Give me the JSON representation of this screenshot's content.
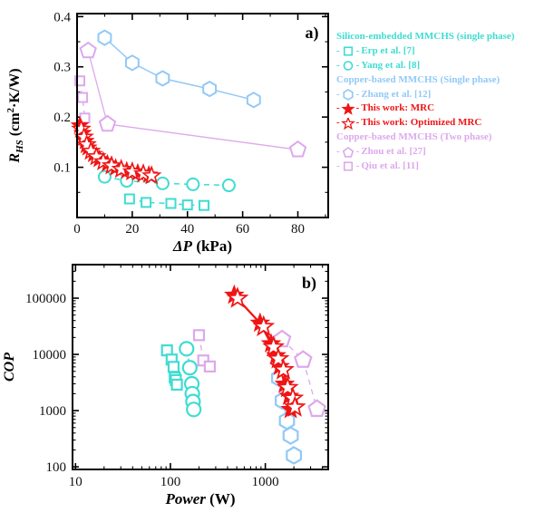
{
  "colors": {
    "cyan": "#3FDCD2",
    "lightblue": "#92C9F7",
    "red": "#F01515",
    "violet": "#DCA9EC",
    "axis": "#000000",
    "background": "#FFFFFF"
  },
  "legend": {
    "dash": "-",
    "groups": [
      {
        "header": "Silicon-embedded MMCHS (single phase)",
        "color": "cyan",
        "items": [
          {
            "label": "Erp et al. [7]",
            "marker": "square"
          },
          {
            "label": "Yang et al. [8]",
            "marker": "circle"
          }
        ]
      },
      {
        "header": "Copper-based MMCHS (Single phase)",
        "color": "lightblue",
        "items": [
          {
            "label": "Zhang et al. [12]",
            "marker": "hexagon"
          },
          {
            "label": "This work: MRC",
            "marker": "star",
            "color": "red"
          },
          {
            "label": "This work: Optimized MRC",
            "marker": "star-open",
            "color": "red"
          }
        ]
      },
      {
        "header": "Copper-based MMCHS (Two phase)",
        "color": "violet",
        "items": [
          {
            "label": "Zhou et al. [27]",
            "marker": "pentagon"
          },
          {
            "label": "Qiu et al. [11]",
            "marker": "square"
          }
        ]
      }
    ]
  },
  "chart_data": [
    {
      "panel": "a",
      "type": "scatter",
      "panel_label": "a)",
      "xlog": false,
      "ylog": false,
      "xlim": [
        0,
        91
      ],
      "ylim": [
        0,
        0.406
      ],
      "xticks": [
        0,
        20,
        40,
        60,
        80
      ],
      "xminor": [
        10,
        30,
        50,
        70,
        90
      ],
      "yticks": [
        0.1,
        0.2,
        0.3,
        0.4
      ],
      "yminor": [
        0.05,
        0.15,
        0.25,
        0.35
      ],
      "xlabel": {
        "sym": "ΔP",
        "unit": " (kPa)"
      },
      "ylabel": {
        "sym": "R",
        "sub": "HS",
        "pre": " (cm",
        "sup": "2",
        "post": "·K/W)"
      },
      "series": [
        {
          "key": "qiu",
          "name": "Qiu et al. [11]",
          "color": "violet",
          "marker": "square",
          "msize": 10,
          "line": "dashed",
          "lw": 1.3,
          "points": [
            [
              1,
              0.272
            ],
            [
              2,
              0.239
            ],
            [
              2.8,
              0.198
            ]
          ]
        },
        {
          "key": "zhou",
          "name": "Zhou et al. [27]",
          "color": "violet",
          "marker": "pentagon",
          "msize": 9,
          "line": "solid",
          "lw": 1.3,
          "points": [
            [
              4,
              0.332
            ],
            [
              11,
              0.186
            ],
            [
              80,
              0.135
            ]
          ]
        },
        {
          "key": "zhang",
          "name": "Zhang et al. [12]",
          "color": "lightblue",
          "marker": "hexagon",
          "msize": 8,
          "line": "solid",
          "lw": 1.5,
          "points": [
            [
              10,
              0.358
            ],
            [
              20,
              0.308
            ],
            [
              31,
              0.277
            ],
            [
              48,
              0.256
            ],
            [
              64,
              0.234
            ]
          ]
        },
        {
          "key": "erp",
          "name": "Erp et al. [7]",
          "color": "cyan",
          "marker": "square",
          "msize": 10,
          "line": "dashed",
          "lw": 1.5,
          "points": [
            [
              19,
              0.037
            ],
            [
              25,
              0.03
            ],
            [
              34,
              0.028
            ],
            [
              40,
              0.025
            ],
            [
              46,
              0.024
            ]
          ]
        },
        {
          "key": "yang",
          "name": "Yang et al. [8]",
          "color": "cyan",
          "marker": "circle",
          "msize": 6.5,
          "line": "dashed",
          "lw": 1.5,
          "points": [
            [
              10,
              0.081
            ],
            [
              18,
              0.073
            ],
            [
              31,
              0.068
            ],
            [
              42,
              0.066
            ],
            [
              55,
              0.064
            ]
          ]
        },
        {
          "key": "mrc",
          "name": "This work: MRC",
          "color": "red",
          "marker": "star",
          "msize": 9.5,
          "line": "solid",
          "lw": 1.6,
          "points": [
            [
              1,
              0.183
            ],
            [
              2,
              0.168
            ],
            [
              3,
              0.152
            ],
            [
              4,
              0.139
            ],
            [
              6,
              0.126
            ],
            [
              8,
              0.116
            ],
            [
              11,
              0.107
            ],
            [
              14,
              0.099
            ],
            [
              18,
              0.093
            ],
            [
              22,
              0.089
            ],
            [
              26,
              0.085
            ]
          ]
        },
        {
          "key": "mrc-opt",
          "name": "This work: Optimized MRC",
          "color": "red",
          "marker": "star-open",
          "msize": 9.5,
          "line": "solid",
          "lw": 1.3,
          "points": [
            [
              1.5,
              0.176
            ],
            [
              2.5,
              0.16
            ],
            [
              3.5,
              0.145
            ],
            [
              5,
              0.132
            ],
            [
              7,
              0.121
            ],
            [
              9.5,
              0.111
            ],
            [
              12.5,
              0.103
            ],
            [
              16,
              0.096
            ],
            [
              20,
              0.091
            ],
            [
              24,
              0.087
            ],
            [
              27,
              0.083
            ]
          ]
        }
      ]
    },
    {
      "panel": "b",
      "type": "scatter",
      "panel_label": "b)",
      "xlog": true,
      "ylog": true,
      "xlim": [
        9.3,
        4600
      ],
      "ylim": [
        90,
        395000
      ],
      "xticks": [
        10,
        100,
        1000
      ],
      "yticks": [
        100,
        1000,
        10000,
        100000
      ],
      "xlabel": {
        "sym": "Power",
        "unit": " (W)"
      },
      "ylabel": {
        "sym": "COP"
      },
      "series": [
        {
          "key": "qiu",
          "name": "Qiu et al. [11]",
          "color": "violet",
          "marker": "square",
          "msize": 11,
          "line": "dashed",
          "lw": 1.3,
          "points": [
            [
              200,
              22000
            ],
            [
              222,
              7800
            ],
            [
              260,
              6100
            ]
          ]
        },
        {
          "key": "zhou",
          "name": "Zhou et al. [27]",
          "color": "violet",
          "marker": "pentagon",
          "msize": 9.5,
          "line": "dashed",
          "lw": 1.3,
          "points": [
            [
              1500,
              18500
            ],
            [
              2500,
              8000
            ],
            [
              3500,
              1070
            ]
          ]
        },
        {
          "key": "zhang",
          "name": "Zhang et al. [12]",
          "color": "lightblue",
          "marker": "hexagon",
          "msize": 9,
          "line": "dashed",
          "lw": 1.4,
          "points": [
            [
              1400,
              3800
            ],
            [
              1530,
              1500
            ],
            [
              1690,
              660
            ],
            [
              1850,
              360
            ],
            [
              2000,
              160
            ]
          ]
        },
        {
          "key": "erp",
          "name": "Erp et al. [7]",
          "color": "cyan",
          "marker": "square",
          "msize": 11,
          "line": "dashed",
          "lw": 1.4,
          "points": [
            [
              92,
              11800
            ],
            [
              103,
              8100
            ],
            [
              108,
              6000
            ],
            [
              111,
              3900
            ],
            [
              114,
              3500
            ],
            [
              117,
              2900
            ]
          ]
        },
        {
          "key": "yang",
          "name": "Yang et al. [8]",
          "color": "cyan",
          "marker": "circle",
          "msize": 7.5,
          "line": "dashed",
          "lw": 1.4,
          "points": [
            [
              148,
              12600
            ],
            [
              160,
              5800
            ],
            [
              168,
              3000
            ],
            [
              170,
              2000
            ],
            [
              173,
              1450
            ],
            [
              176,
              1050
            ]
          ]
        },
        {
          "key": "mrc",
          "name": "This work: MRC",
          "color": "red",
          "marker": "star",
          "msize": 10.5,
          "line": "solid",
          "lw": 2.2,
          "points": [
            [
              470,
              113000
            ],
            [
              880,
              36000
            ],
            [
              1150,
              15500
            ],
            [
              1300,
              9500
            ],
            [
              1420,
              6100
            ],
            [
              1600,
              2950
            ],
            [
              1780,
              1800
            ],
            [
              1850,
              1050
            ]
          ]
        },
        {
          "key": "mrc-opt",
          "name": "This work: Optimized MRC",
          "color": "red",
          "marker": "star-open",
          "msize": 10.5,
          "line": "solid",
          "lw": 1.8,
          "points": [
            [
              510,
              99000
            ],
            [
              960,
              31000
            ],
            [
              1220,
              13500
            ],
            [
              1370,
              8300
            ],
            [
              1550,
              5300
            ],
            [
              1720,
              2550
            ],
            [
              1950,
              1650
            ],
            [
              2050,
              1150
            ]
          ]
        }
      ]
    }
  ]
}
